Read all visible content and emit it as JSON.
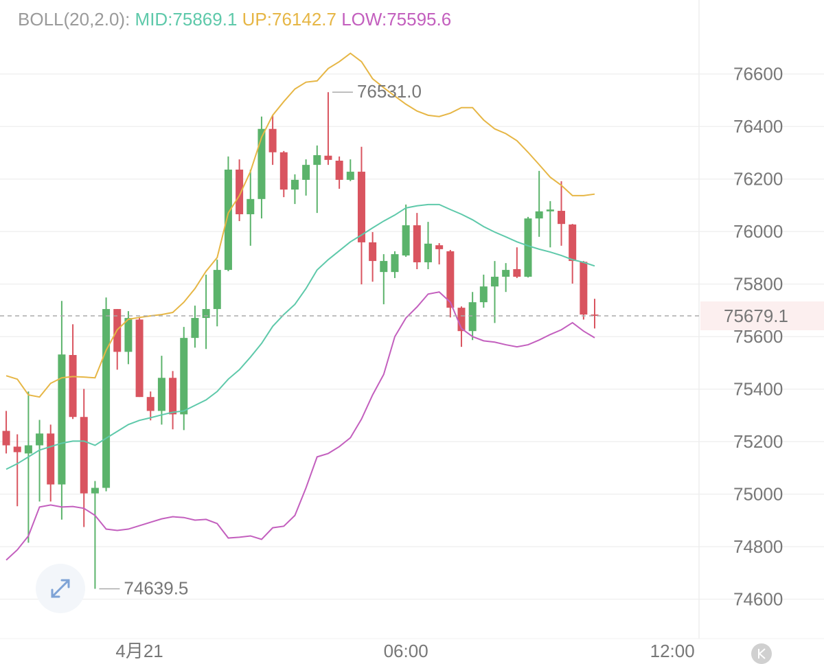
{
  "chart_data": {
    "type": "candlestick",
    "indicator": "BOLL(20,2.0):",
    "x": [
      -3,
      -2.75,
      -2.5,
      -2.25,
      -2,
      -1.75,
      -1.5,
      -1.25,
      -1,
      -0.75,
      -0.5,
      -0.25,
      0,
      0.25,
      0.5,
      0.75,
      1,
      1.25,
      1.5,
      1.75,
      2,
      2.25,
      2.5,
      2.75,
      3,
      3.25,
      3.5,
      3.75,
      4,
      4.25,
      4.5,
      4.75,
      5,
      5.25,
      5.5,
      5.75,
      6,
      6.25,
      6.5,
      6.75,
      7,
      7.25,
      7.5,
      7.75,
      8,
      8.25,
      8.5,
      8.75,
      9,
      9.25,
      9.5,
      9.75,
      10,
      10.25
    ],
    "open": [
      75241,
      75181,
      75155,
      75186,
      75231,
      75037,
      75530,
      75294,
      75003,
      75024,
      75705,
      75542,
      75665,
      75370,
      75317,
      75443,
      75304,
      75595,
      75671,
      75705,
      75854,
      76236,
      76066,
      76124,
      76391,
      76302,
      76160,
      76197,
      76254,
      76289,
      76270,
      76197,
      76228,
      75959,
      75846,
      75846,
      75909,
      76024,
      75883,
      75948,
      75925,
      75710,
      75621,
      75731,
      75791,
      75828,
      75857,
      75828,
      76050,
      76077,
      76079,
      76027,
      75885,
      75684
    ],
    "high": [
      75317,
      75228,
      75391,
      75283,
      75265,
      75736,
      75647,
      75401,
      75050,
      75749,
      75705,
      75697,
      75675,
      75391,
      75527,
      75469,
      75637,
      75718,
      75836,
      75893,
      76286,
      76275,
      76236,
      76438,
      76443,
      76307,
      76218,
      76275,
      76328,
      76531,
      76286,
      76275,
      76323,
      75998,
      75914,
      75925,
      76103,
      76071,
      76037,
      75956,
      75930,
      75715,
      75770,
      75836,
      75888,
      75880,
      75940,
      76056,
      76231,
      76116,
      76192,
      76029,
      75888,
      75744
    ],
    "low": [
      75155,
      74954,
      74815,
      74972,
      74972,
      74903,
      75286,
      74875,
      74639.5,
      75011,
      75474,
      75495,
      75370,
      75281,
      75265,
      75247,
      75244,
      75558,
      75553,
      75639,
      75849,
      76040,
      75946,
      76050,
      76254,
      76131,
      76105,
      76137,
      76071,
      76254,
      76163,
      76192,
      75799,
      75809,
      75723,
      75823,
      75904,
      75857,
      75857,
      75875,
      75673,
      75561,
      75587,
      75710,
      75652,
      75770,
      75823,
      75825,
      75980,
      75940,
      75946,
      75802,
      75665,
      75631
    ],
    "close": [
      75186,
      75160,
      75186,
      75231,
      75037,
      75532,
      75294,
      75003,
      75024,
      75705,
      75542,
      75671,
      75370,
      75317,
      75443,
      75304,
      75595,
      75671,
      75705,
      75854,
      76236,
      76066,
      76124,
      76391,
      76302,
      76160,
      76197,
      76254,
      76291,
      76273,
      76197,
      76228,
      75959,
      75888,
      75888,
      75914,
      76024,
      75883,
      75954,
      75933,
      75710,
      75621,
      75731,
      75791,
      75828,
      75854,
      75828,
      76050,
      76077,
      76084,
      76029,
      75888,
      75684,
      75679.1
    ],
    "up_color": "#5bb36b",
    "down_color": "#d9545f",
    "series": [
      {
        "name": "MID:75869.1",
        "color": "#5ec9aa",
        "values": [
          75095,
          75116,
          75142,
          75168,
          75181,
          75194,
          75202,
          75202,
          75186,
          75213,
          75239,
          75265,
          75281,
          75291,
          75302,
          75312,
          75317,
          75338,
          75359,
          75391,
          75438,
          75474,
          75522,
          75574,
          75639,
          75684,
          75723,
          75783,
          75854,
          75893,
          75927,
          75961,
          75987,
          76014,
          76040,
          76063,
          76090,
          76098,
          76103,
          76103,
          76084,
          76066,
          76045,
          76019,
          75998,
          75980,
          75961,
          75946,
          75933,
          75922,
          75909,
          75893,
          75883,
          75869.1
        ]
      },
      {
        "name": "UP:76142.7",
        "color": "#e6b645",
        "values": [
          75451,
          75438,
          75378,
          75370,
          75422,
          75443,
          75448,
          75446,
          75443,
          75548,
          75626,
          75666,
          75673,
          75679,
          75684,
          75692,
          75731,
          75783,
          75849,
          75901,
          76071,
          76137,
          76229,
          76359,
          76443,
          76495,
          76543,
          76569,
          76574,
          76621,
          76647,
          76679,
          76647,
          76582,
          76548,
          76516,
          76485,
          76459,
          76443,
          76438,
          76451,
          76472,
          76472,
          76425,
          76391,
          76373,
          76346,
          76302,
          76255,
          76207,
          76176,
          76137,
          76137,
          76142.7
        ]
      },
      {
        "name": "LOW:75595.6",
        "color": "#c35fbe",
        "values": [
          74749,
          74788,
          74841,
          74951,
          74959,
          74951,
          74953,
          74946,
          74919,
          74867,
          74862,
          74867,
          74880,
          74893,
          74906,
          74914,
          74911,
          74901,
          74904,
          74888,
          74833,
          74836,
          74841,
          74828,
          74872,
          74878,
          74919,
          75024,
          75142,
          75155,
          75181,
          75215,
          75286,
          75378,
          75456,
          75600,
          75671,
          75713,
          75762,
          75770,
          75731,
          75631,
          75600,
          75584,
          75579,
          75569,
          75561,
          75569,
          75587,
          75608,
          75626,
          75653,
          75621,
          75595.6
        ]
      }
    ],
    "annotations": [
      {
        "value": 76531,
        "label": "76531.0"
      },
      {
        "value": 74639.5,
        "label": "74639.5"
      }
    ],
    "last_price": 75679.1,
    "last_price_color": "#e0525c",
    "ylim": [
      74450,
      76725
    ],
    "yticks": [
      74600,
      74800,
      75000,
      75200,
      75400,
      75600,
      75800,
      76000,
      76200,
      76400,
      76600
    ],
    "xlim": [
      -3.14,
      12.6
    ],
    "xticks": [
      {
        "value": 0,
        "label": "4月21"
      },
      {
        "value": 6,
        "label": "06:00"
      },
      {
        "value": 12,
        "label": "12:00"
      }
    ],
    "grid": true
  }
}
